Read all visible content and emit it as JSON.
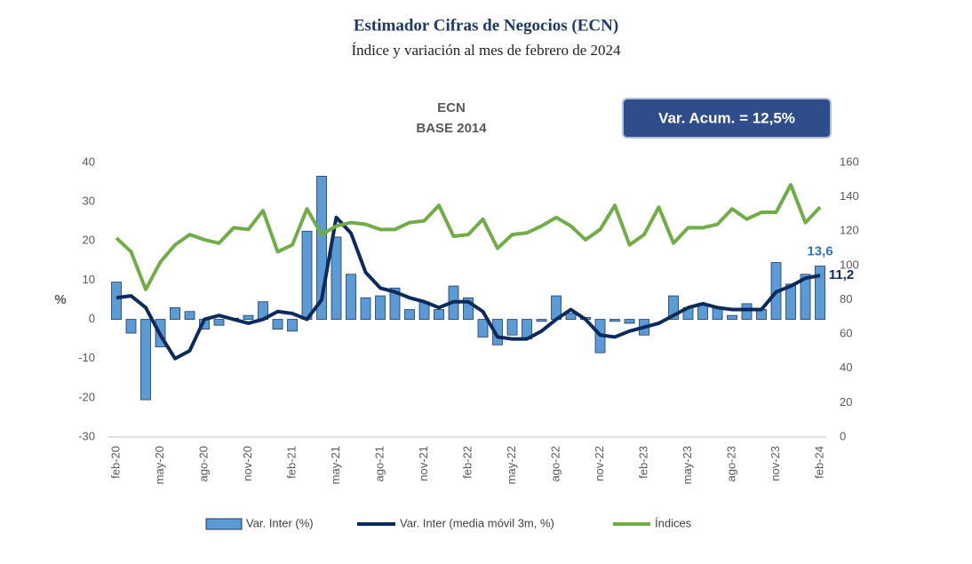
{
  "chart_data": {
    "type": "bar-line",
    "title": "Estimador Cifras de Negocios (ECN)",
    "subtitle": "Índice y variación al mes de febrero de 2024",
    "chart_title": [
      "ECN",
      "BASE 2014"
    ],
    "annotation": "Var. Acum. = 12,5%",
    "ylabel": "%",
    "categories": [
      "feb-20",
      null,
      null,
      "may-20",
      null,
      null,
      "ago-20",
      null,
      null,
      "nov-20",
      null,
      null,
      "feb-21",
      null,
      null,
      "may-21",
      null,
      null,
      "ago-21",
      null,
      null,
      "nov-21",
      null,
      null,
      "feb-22",
      null,
      null,
      "may-22",
      null,
      null,
      "ago-22",
      null,
      null,
      "nov-22",
      null,
      null,
      "feb-23",
      null,
      null,
      "may-23",
      null,
      null,
      "ago-23",
      null,
      null,
      "nov-23",
      null,
      null,
      "feb-24"
    ],
    "ylim": [
      -30,
      40
    ],
    "yticks": [
      -30,
      -20,
      -10,
      0,
      10,
      20,
      30,
      40
    ],
    "y2lim": [
      0,
      160
    ],
    "y2ticks": [
      0,
      20,
      40,
      60,
      80,
      100,
      120,
      140,
      160
    ],
    "series": [
      {
        "name": "Var. Inter (%)",
        "type": "bar",
        "color": "#5b9bd5",
        "values": [
          9.5,
          -3.5,
          -20.5,
          -7,
          3,
          2,
          -2.5,
          -1.5,
          0.3,
          1,
          4.5,
          -2.5,
          -3,
          22.5,
          36.5,
          21,
          11.5,
          5.5,
          6,
          8,
          2.5,
          4.5,
          2.5,
          8.5,
          5.5,
          -4.5,
          -6.5,
          -4,
          -5,
          -0.5,
          6,
          1.5,
          0.5,
          -8.5,
          -0.5,
          -1,
          -4,
          0,
          6,
          3,
          4,
          3,
          1,
          4,
          2.5,
          14.5,
          9,
          11.5,
          13.6
        ],
        "value_labels": [
          null,
          null,
          null,
          null,
          null,
          null,
          null,
          null,
          null,
          null,
          null,
          null,
          null,
          null,
          null,
          null,
          null,
          null,
          null,
          null,
          null,
          null,
          null,
          null,
          null,
          null,
          null,
          null,
          null,
          null,
          null,
          null,
          null,
          null,
          null,
          null,
          null,
          null,
          null,
          null,
          null,
          null,
          null,
          null,
          null,
          null,
          null,
          null,
          "13,6"
        ]
      },
      {
        "name": "Var. Inter (media móvil 3m, %)",
        "type": "line",
        "color": "#0d2a5c",
        "values": [
          5.5,
          6,
          3,
          -4,
          -10,
          -8,
          0,
          1,
          0,
          -1,
          0,
          2,
          1.5,
          0,
          5,
          26,
          22,
          12,
          8,
          7,
          5.5,
          4.5,
          3,
          4.5,
          4.5,
          2,
          -4.5,
          -5,
          -5,
          -3,
          0,
          2.5,
          0,
          -4,
          -4.5,
          -3,
          -2,
          -1,
          1,
          3,
          4,
          3,
          2.5,
          2.5,
          2.5,
          7,
          8.5,
          10.5,
          11.2
        ],
        "value_labels": [
          null,
          null,
          null,
          null,
          null,
          null,
          null,
          null,
          null,
          null,
          null,
          null,
          null,
          null,
          null,
          null,
          null,
          null,
          null,
          null,
          null,
          null,
          null,
          null,
          null,
          null,
          null,
          null,
          null,
          null,
          null,
          null,
          null,
          null,
          null,
          null,
          null,
          null,
          null,
          null,
          null,
          null,
          null,
          null,
          null,
          null,
          null,
          null,
          "11,2"
        ]
      },
      {
        "name": "Índices",
        "type": "line",
        "axis": "y2",
        "color": "#70ad47",
        "values": [
          116,
          108,
          86,
          102,
          112,
          118,
          115,
          113,
          122,
          121,
          132,
          108,
          112,
          133,
          118,
          123,
          125,
          124,
          121,
          121,
          125,
          126,
          135,
          117,
          118,
          127,
          110,
          118,
          119,
          123,
          128,
          123,
          115,
          121,
          135,
          112,
          118,
          134,
          113,
          122,
          122,
          124,
          133,
          127,
          131,
          131,
          147,
          125,
          134
        ]
      }
    ]
  }
}
